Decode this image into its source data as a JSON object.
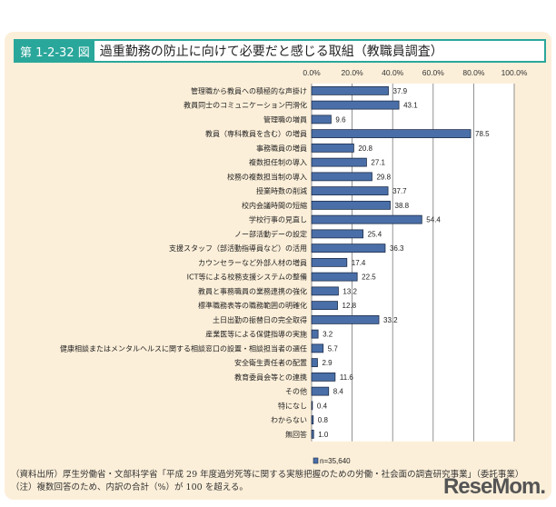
{
  "header": {
    "figure_number": "第 1-2-32 図",
    "title": "過重勤務の防止に向けて必要だと感じる取組（教職員調査）"
  },
  "chart_data": {
    "type": "bar",
    "orientation": "horizontal",
    "xlim": [
      0,
      100
    ],
    "ticks": [
      "0.0%",
      "20.0%",
      "40.0%",
      "60.0%",
      "80.0%",
      "100.0%"
    ],
    "grid": true,
    "bar_color": "#4a6fa8",
    "legend_placement": "bottom",
    "series": [
      {
        "name": "n=35,640"
      }
    ],
    "categories": [
      "管理職から教員への積極的な声掛け",
      "教員同士のコミュニケーション円滑化",
      "管理職の増員",
      "教員（専科教員を含む）の増員",
      "事務職員の増員",
      "複数担任制の導入",
      "校務の複数担当制の導入",
      "授業時数の削減",
      "校内会議時間の短縮",
      "学校行事の見直し",
      "ノー部活動デーの設定",
      "支援スタッフ（部活動指導員など）の活用",
      "カウンセラーなど外部人材の増員",
      "ICT等による校務支援システムの整備",
      "教員と事務職員の業務連携の強化",
      "標準職務表等の職務範囲の明確化",
      "土日出勤の振替日の完全取得",
      "産業医等による保健指導の実施",
      "健康相談またはメンタルヘルスに関する相談窓口の設置・相談担当者の選任",
      "安全衛生責任者の配置",
      "教育委員会等との連携",
      "その他",
      "特になし",
      "わからない",
      "無回答"
    ],
    "values": [
      37.9,
      43.1,
      9.6,
      78.5,
      20.8,
      27.1,
      29.8,
      37.7,
      38.8,
      54.4,
      25.4,
      36.3,
      17.4,
      22.5,
      13.2,
      12.8,
      33.2,
      3.2,
      5.7,
      2.9,
      11.6,
      8.4,
      0.4,
      0.8,
      1.0
    ],
    "labels": [
      "37.9",
      "43.1",
      "9.6",
      "78.5",
      "20.8",
      "27.1",
      "29.8",
      "37.7",
      "38.8",
      "54.4",
      "25.4",
      "36.3",
      "17.4",
      "22.5",
      "13.2",
      "12.8",
      "33.2",
      "3.2",
      "5.7",
      "2.9",
      "11.6",
      "8.4",
      "0.4",
      "0.8",
      "1.0"
    ]
  },
  "notes": [
    "（資料出所）厚生労働省・文部科学省「平成 29 年度過労死等に関する実態把握のための労働・社会面の調査研究事業」（委託事業）",
    "（注）複数回答のため、内訳の合計（%）が 100 を超える。"
  ],
  "logo": "ReseMom"
}
